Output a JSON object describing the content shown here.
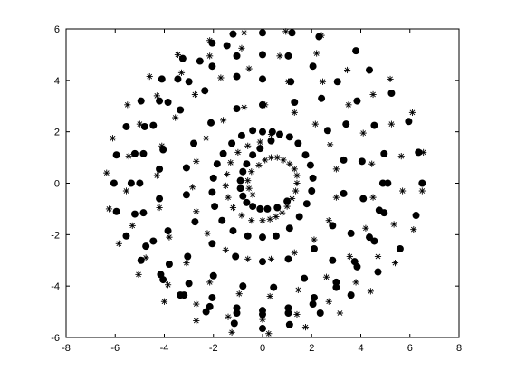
{
  "chart_data": {
    "type": "scatter",
    "title": "",
    "xlabel": "",
    "ylabel": "",
    "xlim": [
      -8,
      8
    ],
    "ylim": [
      -6,
      6
    ],
    "xticks": [
      -8,
      -6,
      -4,
      -2,
      0,
      2,
      4,
      6,
      8
    ],
    "yticks": [
      -6,
      -4,
      -2,
      0,
      2,
      4,
      6
    ],
    "grid": false,
    "legend": "none",
    "series": [
      {
        "marker": "dot",
        "color": "#000000",
        "points": [
          [
            1,
            -0.7
          ],
          [
            0.6,
            -0.95
          ],
          [
            0.2,
            -1
          ],
          [
            -0.1,
            -1
          ],
          [
            -0.4,
            -0.9
          ],
          [
            -0.65,
            -0.75
          ],
          [
            -0.8,
            -0.5
          ],
          [
            -0.9,
            -0.2
          ],
          [
            -0.9,
            0.1
          ],
          [
            -0.8,
            0.45
          ],
          [
            -0.65,
            0.75
          ],
          [
            -0.4,
            1.1
          ],
          [
            -0.1,
            1.35
          ],
          [
            0.35,
            1.65
          ],
          [
            0.7,
            1.9
          ],
          [
            1.1,
            1.8
          ],
          [
            1.45,
            1.55
          ],
          [
            1.75,
            1.1
          ],
          [
            1.95,
            0.7
          ],
          [
            2.05,
            0.2
          ],
          [
            2,
            -0.3
          ],
          [
            1.8,
            -0.8
          ],
          [
            1.5,
            -1.3
          ],
          [
            1.1,
            -1.75
          ],
          [
            0.55,
            -2.05
          ],
          [
            0,
            -2.1
          ],
          [
            -0.6,
            -2.05
          ],
          [
            -1.2,
            -1.85
          ],
          [
            -1.65,
            -1.45
          ],
          [
            -1.95,
            -0.9
          ],
          [
            -2.05,
            -0.35
          ],
          [
            -2,
            0.2
          ],
          [
            -1.85,
            0.75
          ],
          [
            -1.6,
            1.15
          ],
          [
            -1.25,
            1.55
          ],
          [
            -0.85,
            1.85
          ],
          [
            -0.4,
            2.05
          ],
          [
            0,
            2
          ],
          [
            0.4,
            2
          ],
          [
            1.3,
            3.15
          ],
          [
            2.65,
            2.05
          ],
          [
            3.3,
            0.9
          ],
          [
            3.3,
            -0.4
          ],
          [
            2.85,
            -1.65
          ],
          [
            2.1,
            -2.55
          ],
          [
            1.05,
            -2.95
          ],
          [
            0,
            -3.05
          ],
          [
            -1.1,
            -2.85
          ],
          [
            -2.05,
            -2.35
          ],
          [
            -2.75,
            -1.5
          ],
          [
            -3.1,
            -0.45
          ],
          [
            -3.1,
            0.6
          ],
          [
            -2.8,
            1.55
          ],
          [
            -2.1,
            2.35
          ],
          [
            -1.05,
            2.9
          ],
          [
            0,
            3.05
          ],
          [
            1.15,
            3.95
          ],
          [
            2.4,
            3.3
          ],
          [
            3.4,
            2.3
          ],
          [
            4.05,
            0.85
          ],
          [
            4.1,
            -0.6
          ],
          [
            3.6,
            -1.95
          ],
          [
            2.85,
            -3
          ],
          [
            1.7,
            -3.7
          ],
          [
            0.45,
            -4.05
          ],
          [
            -0.8,
            -4
          ],
          [
            -2,
            -3.6
          ],
          [
            -3.05,
            -2.85
          ],
          [
            -3.85,
            -1.85
          ],
          [
            -4.2,
            -0.6
          ],
          [
            -4.2,
            0.55
          ],
          [
            -4.05,
            1.3
          ],
          [
            -3.35,
            2.85
          ],
          [
            -2.35,
            3.6
          ],
          [
            -1.05,
            4.15
          ],
          [
            0,
            4.05
          ],
          [
            2.3,
            5.7
          ],
          [
            3.8,
            5.15
          ],
          [
            4.35,
            4.4
          ],
          [
            5.25,
            3.5
          ],
          [
            5.95,
            2.4
          ],
          [
            6.35,
            1.2
          ],
          [
            6.5,
            0
          ],
          [
            6.25,
            -1.25
          ],
          [
            5.6,
            -2.55
          ],
          [
            4.7,
            -3.45
          ],
          [
            3.6,
            -4.35
          ],
          [
            2.35,
            -5.05
          ],
          [
            1.1,
            -5.5
          ],
          [
            0,
            -5.65
          ],
          [
            -1.15,
            -5.45
          ],
          [
            -2.3,
            -5
          ],
          [
            -3.35,
            -4.35
          ],
          [
            -4.15,
            -3.55
          ],
          [
            -4.75,
            -2.45
          ],
          [
            -5.2,
            -1.2
          ],
          [
            -5.35,
            0.0
          ],
          [
            -5.2,
            1.15
          ],
          [
            -4.8,
            2.2
          ],
          [
            -4.2,
            3.2
          ],
          [
            -3.45,
            4.05
          ],
          [
            -2.55,
            4.75
          ],
          [
            -1.45,
            5.35
          ],
          [
            0,
            5.85
          ],
          [
            1.2,
            5.85
          ],
          [
            -1.2,
            5.8
          ],
          [
            -2.05,
            5.45
          ],
          [
            -3.25,
            4.85
          ],
          [
            -4.1,
            4.05
          ],
          [
            -4.95,
            3.2
          ],
          [
            -5.55,
            2.2
          ],
          [
            -5.95,
            1.1
          ],
          [
            -6.05,
            0
          ],
          [
            -5.95,
            -1.1
          ],
          [
            -5.55,
            -2.05
          ],
          [
            -4.95,
            -3
          ],
          [
            -4.05,
            -3.75
          ],
          [
            -3.2,
            -4.35
          ],
          [
            -2.15,
            -4.8
          ],
          [
            -1.05,
            -5.05
          ],
          [
            0,
            -5.1
          ],
          [
            1.05,
            -5.05
          ],
          [
            2.05,
            -4.7
          ],
          [
            3,
            -4.05
          ],
          [
            3.85,
            -3.25
          ],
          [
            4.55,
            -2.25
          ],
          [
            4.95,
            -1.15
          ],
          [
            5.1,
            0
          ],
          [
            4.95,
            1.15
          ],
          [
            4.55,
            2.25
          ],
          [
            3.85,
            3.2
          ],
          [
            3.05,
            3.95
          ],
          [
            2.05,
            4.55
          ],
          [
            1.05,
            4.95
          ],
          [
            0,
            5.0
          ],
          [
            -1.05,
            4.95
          ],
          [
            -2.05,
            4.55
          ],
          [
            -3,
            3.95
          ],
          [
            -3.85,
            3.15
          ],
          [
            -4.45,
            2.25
          ],
          [
            -4.85,
            1.15
          ],
          [
            -5,
            0
          ],
          [
            -4.85,
            -1.15
          ],
          [
            -4.45,
            -2.25
          ],
          [
            -3.8,
            -3.15
          ],
          [
            -3,
            -3.9
          ],
          [
            -2.05,
            -4.45
          ],
          [
            -1.05,
            -4.85
          ],
          [
            0,
            -4.95
          ],
          [
            1.05,
            -4.85
          ],
          [
            2.1,
            -4.45
          ],
          [
            3,
            -3.85
          ],
          [
            3.75,
            -3.05
          ],
          [
            4.35,
            -2.1
          ],
          [
            4.75,
            -1.05
          ],
          [
            4.9,
            0
          ]
        ]
      },
      {
        "marker": "star",
        "color": "#000000",
        "points": [
          [
            -0.45,
            0.45
          ],
          [
            -0.6,
            0.1
          ],
          [
            -0.55,
            -0.2
          ],
          [
            -0.4,
            -0.45
          ],
          [
            -0.15,
            0.7
          ],
          [
            0.1,
            0.9
          ],
          [
            0.35,
            1
          ],
          [
            0.6,
            1
          ],
          [
            0.85,
            0.9
          ],
          [
            1.1,
            0.75
          ],
          [
            1.3,
            0.55
          ],
          [
            1.4,
            0.3
          ],
          [
            1.4,
            0
          ],
          [
            1.35,
            -0.3
          ],
          [
            1.2,
            -0.6
          ],
          [
            1,
            -0.9
          ],
          [
            0.8,
            -1.15
          ],
          [
            0.55,
            -1.3
          ],
          [
            0.3,
            -1.4
          ],
          [
            0,
            -1.45
          ],
          [
            -0.45,
            -1.45
          ],
          [
            -0.85,
            -1.25
          ],
          [
            -1.2,
            -0.95
          ],
          [
            -1.4,
            -0.55
          ],
          [
            -1.5,
            -0.1
          ],
          [
            -1.45,
            0.35
          ],
          [
            -1.3,
            0.8
          ],
          [
            -1,
            1.2
          ],
          [
            -0.6,
            1.45
          ],
          [
            -0.1,
            1.6
          ],
          [
            0.35,
            1.9
          ],
          [
            1.3,
            2.75
          ],
          [
            2.15,
            2.3
          ],
          [
            2.75,
            1.5
          ],
          [
            3,
            0.55
          ],
          [
            3,
            -0.55
          ],
          [
            2.7,
            -1.45
          ],
          [
            2.1,
            -2.2
          ],
          [
            1.3,
            -2.7
          ],
          [
            0.35,
            -2.95
          ],
          [
            -0.6,
            -2.95
          ],
          [
            -1.5,
            -2.6
          ],
          [
            -2.25,
            -1.95
          ],
          [
            -2.7,
            -1.1
          ],
          [
            -2.85,
            -0.15
          ],
          [
            -2.7,
            0.85
          ],
          [
            -2.3,
            1.75
          ],
          [
            -1.6,
            2.45
          ],
          [
            -0.75,
            2.95
          ],
          [
            0.1,
            3.05
          ],
          [
            1.05,
            3.95
          ],
          [
            2.45,
            3.95
          ],
          [
            3.5,
            3.05
          ],
          [
            4.1,
            1.95
          ],
          [
            4.45,
            0.75
          ],
          [
            4.5,
            -0.55
          ],
          [
            4.2,
            -1.75
          ],
          [
            3.55,
            -2.85
          ],
          [
            2.6,
            -3.65
          ],
          [
            1.45,
            -4.15
          ],
          [
            0.3,
            -4.4
          ],
          [
            -0.95,
            -4.3
          ],
          [
            -2.15,
            -3.85
          ],
          [
            -3.1,
            -3.1
          ],
          [
            -3.8,
            -2.1
          ],
          [
            -4.2,
            -0.95
          ],
          [
            -4.3,
            0.3
          ],
          [
            -4.1,
            1.45
          ],
          [
            -3.55,
            2.55
          ],
          [
            -2.75,
            3.45
          ],
          [
            -1.7,
            4.1
          ],
          [
            -0.55,
            4.45
          ],
          [
            0.7,
            4.95
          ],
          [
            2.2,
            5.05
          ],
          [
            3.45,
            4.4
          ],
          [
            4.5,
            3.45
          ],
          [
            5.25,
            2.3
          ],
          [
            5.65,
            1.05
          ],
          [
            5.7,
            -0.3
          ],
          [
            5.35,
            -1.6
          ],
          [
            4.7,
            -2.85
          ],
          [
            3.8,
            -3.85
          ],
          [
            2.7,
            -4.6
          ],
          [
            1.4,
            -5.1
          ],
          [
            0,
            -5.3
          ],
          [
            -1.4,
            -5.2
          ],
          [
            -2.7,
            -4.7
          ],
          [
            -3.85,
            -3.95
          ],
          [
            -4.75,
            -2.9
          ],
          [
            -5.3,
            -1.65
          ],
          [
            -5.55,
            -0.3
          ],
          [
            -5.45,
            1.05
          ],
          [
            -5,
            2.3
          ],
          [
            -4.3,
            3.4
          ],
          [
            -3.3,
            4.3
          ],
          [
            -2.15,
            4.95
          ],
          [
            -0.85,
            5.25
          ],
          [
            0.95,
            5.9
          ],
          [
            2.4,
            5.75
          ],
          [
            3.8,
            5.15
          ],
          [
            5.2,
            4.05
          ],
          [
            6.1,
            2.75
          ],
          [
            6.55,
            1.2
          ],
          [
            6.5,
            -0.3
          ],
          [
            6.15,
            -1.8
          ],
          [
            5.4,
            -3.1
          ],
          [
            4.4,
            -4.2
          ],
          [
            3.15,
            -5.05
          ],
          [
            1.75,
            -5.6
          ],
          [
            0.25,
            -5.85
          ],
          [
            -1.25,
            -5.8
          ],
          [
            -2.7,
            -5.35
          ],
          [
            -4,
            -4.6
          ],
          [
            -5.05,
            -3.55
          ],
          [
            -5.85,
            -2.35
          ],
          [
            -6.25,
            -1.0
          ],
          [
            -6.35,
            0.4
          ],
          [
            -6.1,
            1.75
          ],
          [
            -5.5,
            3.05
          ],
          [
            -4.6,
            4.15
          ],
          [
            -3.45,
            5.0
          ],
          [
            -2.15,
            5.55
          ],
          [
            -0.75,
            5.85
          ]
        ]
      }
    ]
  }
}
